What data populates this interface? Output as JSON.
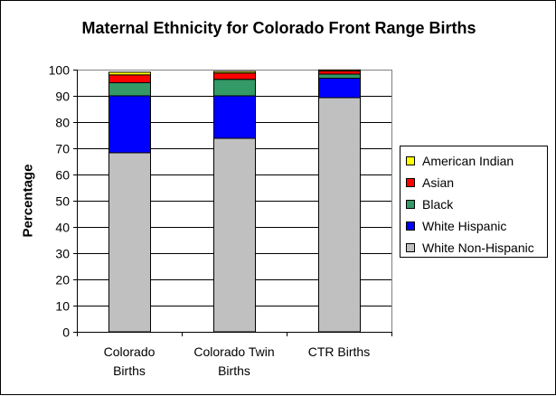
{
  "chart_data": {
    "type": "bar",
    "stacked": true,
    "title": "Maternal Ethnicity for Colorado Front Range Births",
    "xlabel": "",
    "ylabel": "Percentage",
    "ylim": [
      0,
      100
    ],
    "yticks": [
      0,
      10,
      20,
      30,
      40,
      50,
      60,
      70,
      80,
      90,
      100
    ],
    "grid": true,
    "legend_position": "right",
    "categories": [
      [
        "Colorado",
        "Births"
      ],
      [
        "Colorado Twin",
        "Births"
      ],
      [
        "CTR Births"
      ]
    ],
    "series": [
      {
        "name": "White Non-Hispanic",
        "color": "#c0c0c0",
        "values": [
          68.3,
          73.8,
          89.3
        ]
      },
      {
        "name": "White Hispanic",
        "color": "#0000ff",
        "values": [
          21.7,
          16.2,
          7.4
        ]
      },
      {
        "name": "Black",
        "color": "#339966",
        "values": [
          5.0,
          6.3,
          1.6
        ]
      },
      {
        "name": "Asian",
        "color": "#ff0000",
        "values": [
          3.0,
          2.4,
          1.2
        ]
      },
      {
        "name": "American Indian",
        "color": "#ffff00",
        "values": [
          1.0,
          0.6,
          0.4
        ]
      }
    ]
  },
  "colors": {
    "plot_background": "#ffffff",
    "gridline": "#000000",
    "axis": "#000000"
  }
}
